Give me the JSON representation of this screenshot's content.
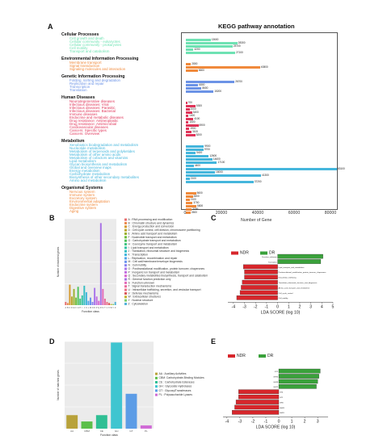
{
  "panels": {
    "A": "A",
    "B": "B",
    "C": "C",
    "D": "D",
    "E": "E"
  },
  "chart_data": [
    {
      "panel": "A",
      "type": "bar",
      "orientation": "horizontal",
      "title": "KEGG pathway annotation",
      "xlabel": "Number of Gene",
      "xticks": [
        "0",
        "20000",
        "40000",
        "60000",
        "80000"
      ],
      "xlim": [
        0,
        85000
      ],
      "groups": [
        {
          "name": "Cellular Processes",
          "color": "#6fe2b3",
          "items": [
            {
              "label": "Cell growth and death",
              "value": 13600
            },
            {
              "label": "Cellular community - eukaryotes",
              "value": 28300
            },
            {
              "label": "Cellular community - prokaryotes",
              "value": 25700
            },
            {
              "label": "Cell motility",
              "value": 4200
            },
            {
              "label": "Transport and catabolism",
              "value": 27100
            }
          ]
        },
        {
          "name": "Environmental Information Processing",
          "color": "#f08a3c",
          "items": [
            {
              "label": "Membrane transport",
              "value": 2800
            },
            {
              "label": "Signal transduction",
              "value": 40800
            },
            {
              "label": "Signaling molecules and interaction",
              "value": 6600
            }
          ]
        },
        {
          "name": "Genetic Information Processing",
          "color": "#6c93e6",
          "items": [
            {
              "label": "Folding, sorting and degradation",
              "value": 26700
            },
            {
              "label": "Replication and repair",
              "value": 6800
            },
            {
              "label": "Transcription",
              "value": 8600
            },
            {
              "label": "Translation",
              "value": 15200
            }
          ]
        },
        {
          "name": "Human Diseases",
          "color": "#e0355a",
          "items": [
            {
              "label": "Neurodegenerative diseases",
              "value": 700
            },
            {
              "label": "Infectious diseases: Viral",
              "value": 5300
            },
            {
              "label": "Infectious diseases: Parasitic",
              "value": 2000
            },
            {
              "label": "Infectious diseases: Bacterial",
              "value": 3400
            },
            {
              "label": "Immune diseases",
              "value": 1400
            },
            {
              "label": "Endocrine and metabolic diseases",
              "value": 4100
            },
            {
              "label": "Drug resistance: Antineoplastic",
              "value": 1500
            },
            {
              "label": "Drug resistance: Antimicrobial",
              "value": 6900
            },
            {
              "label": "Cardiovascular diseases",
              "value": 1900
            },
            {
              "label": "Cancers: Specific types",
              "value": 3100
            },
            {
              "label": "Cancers: Overview",
              "value": 5200
            }
          ]
        },
        {
          "name": "Metabolism",
          "color": "#45b6dc",
          "items": [
            {
              "label": "Xenobiotics biodegradation and metabolism",
              "value": 9900
            },
            {
              "label": "Nucleotide metabolism",
              "value": 9700
            },
            {
              "label": "Metabolism of terpenoids and polyketides",
              "value": 5400
            },
            {
              "label": "Metabolism of other amino acids",
              "value": 12600
            },
            {
              "label": "Metabolism of cofactors and vitamins",
              "value": 14600
            },
            {
              "label": "Lipid metabolism",
              "value": 17100
            },
            {
              "label": "Glycan biosynthesis and metabolism",
              "value": 4400
            },
            {
              "label": "Global and overview maps",
              "value": 83100
            },
            {
              "label": "Energy metabolism",
              "value": 16000
            },
            {
              "label": "Carbohydrate metabolism",
              "value": 41300
            },
            {
              "label": "Biosynthesis of other secondary metabolites",
              "value": 2100
            },
            {
              "label": "Amino acid metabolism",
              "value": 37200
            }
          ]
        },
        {
          "name": "Organismal Systems",
          "color": "#f08a3c",
          "items": [
            {
              "label": "Nervous system",
              "value": 5600
            },
            {
              "label": "Immune system",
              "value": 3800
            },
            {
              "label": "Excretory system",
              "value": 2100
            },
            {
              "label": "Environmental adaptation",
              "value": 3700
            },
            {
              "label": "Endocrine system",
              "value": 5800
            },
            {
              "label": "Digestive system",
              "value": 3200
            },
            {
              "label": "Aging",
              "value": 2600
            }
          ]
        }
      ]
    },
    {
      "panel": "B",
      "type": "bar",
      "xlabel": "Function class",
      "ylabel": "Number of matched genes",
      "ylim": [
        0,
        8000
      ],
      "categories": [
        "A",
        "B",
        "C",
        "D",
        "E",
        "F",
        "G",
        "H",
        "I",
        "J",
        "K",
        "L",
        "M",
        "N",
        "O",
        "P",
        "Q",
        "R",
        "S",
        "T",
        "U",
        "V",
        "W",
        "Y",
        "Z"
      ],
      "values": [
        300,
        200,
        1900,
        800,
        1500,
        700,
        1700,
        600,
        900,
        1800,
        1200,
        400,
        700,
        300,
        1600,
        800,
        400,
        7600,
        1500,
        600,
        300,
        200,
        100,
        100,
        300
      ],
      "legend": [
        "A : RNA processing and modification",
        "B : Chromatin structure and dynamics",
        "C : Energy production and conversion",
        "D : Cell cycle control, cell division, chromosome partitioning",
        "E : Amino acid transport and metabolism",
        "F : Nucleotide transport and metabolism",
        "G : Carbohydrate transport and metabolism",
        "H : Coenzyme transport and metabolism",
        "I : Lipid transport and metabolism",
        "J : Translation, ribosomal structure and biogenesis",
        "K : Transcription",
        "L : Replication, recombination and repair",
        "M : Cell wall/membrane/envelope biogenesis",
        "N : Cell motility",
        "O : Posttranslational modification, protein turnover, chaperones",
        "P : Inorganic ion transport and metabolism",
        "Q : Secondary metabolites biosynthesis, transport and catabolism",
        "R : General function prediction only",
        "S : Function unknown",
        "T : Signal transduction mechanisms",
        "U : Intracellular trafficking, secretion, and vesicular transport",
        "V : Defense mechanisms",
        "W : Extracellular structures",
        "Y : Nuclear structure",
        "Z : Cytoskeleton"
      ]
    },
    {
      "panel": "C",
      "type": "bar",
      "orientation": "horizontal",
      "xlabel": "LDA SCORE (log 10)",
      "xlim": [
        -4.5,
        5
      ],
      "xticks": [
        "-4",
        "-3",
        "-2",
        "-1",
        "0",
        "1",
        "2",
        "3",
        "4",
        "5"
      ],
      "legend": [
        {
          "name": "NDR",
          "color": "#d7262b"
        },
        {
          "name": "DR",
          "color": "#3aa13b"
        }
      ],
      "bars": [
        {
          "label": "Function_unknown",
          "value": 4.1
        },
        {
          "label": "Translation",
          "value": 3.9
        },
        {
          "label": "Lipid_transport_and_metabolism",
          "value": -3.1
        },
        {
          "label": "Posttranslational_modification_protein_turnover_chaperones",
          "value": -3.0
        },
        {
          "label": "Intracellular_trafficking",
          "value": -3.0
        },
        {
          "label": "Translation_ribosomal_structure_and_biogenesis",
          "value": -3.2
        },
        {
          "label": "Amino_acid_transport_and_metabolism",
          "value": -3.3
        },
        {
          "label": "Cell_cycle_control",
          "value": -3.4
        },
        {
          "label": "Cell_motility",
          "value": -3.7
        }
      ]
    },
    {
      "panel": "D",
      "type": "bar",
      "xlabel": "Function class",
      "ylabel": "Number of matched genes",
      "ylim": [
        0,
        4000
      ],
      "categories": [
        "AA",
        "CBM",
        "CE",
        "GH",
        "GT",
        "PL"
      ],
      "values": [
        620,
        330,
        620,
        3950,
        1600,
        150
      ],
      "colors": [
        "#b8a23a",
        "#5cbf4a",
        "#2fbf94",
        "#3fc5d0",
        "#5c9ce6",
        "#d06bd6"
      ],
      "legend": [
        "AA : Auxiliary Activities",
        "CBM: Carbohydrate-Binding Modules",
        "CE : Carbohydrate Esterases",
        "GH : Glycoside Hydrolases",
        "GT : GlycosylTransferases",
        "PL : Polysaccharide Lyases"
      ]
    },
    {
      "panel": "E",
      "type": "bar",
      "orientation": "horizontal",
      "xlabel": "LDA SCORE (log 10)",
      "xlim": [
        -4.3,
        3.8
      ],
      "xticks": [
        "-4",
        "-3",
        "-2",
        "-1",
        "0",
        "1",
        "2",
        "3"
      ],
      "legend": [
        {
          "name": "NDR",
          "color": "#d7262b"
        },
        {
          "name": "DR",
          "color": "#3aa13b"
        }
      ],
      "bars": [
        {
          "label": "GT2",
          "value": 3.2
        },
        {
          "label": "GH76",
          "value": 3.1
        },
        {
          "label": "GH18",
          "value": 3.0
        },
        {
          "label": "GH72",
          "value": 2.9
        },
        {
          "label": "GT4",
          "value": -3.1
        },
        {
          "label": "GT1",
          "value": -3.1
        },
        {
          "label": "GH3",
          "value": -3.3
        },
        {
          "label": "GH43",
          "value": -3.4
        },
        {
          "label": "GH31",
          "value": -3.6
        }
      ]
    }
  ]
}
